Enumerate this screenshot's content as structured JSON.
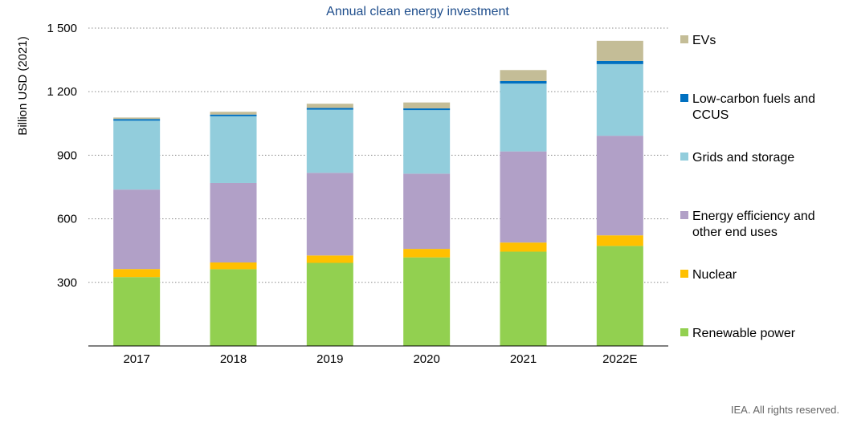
{
  "chart_data": {
    "type": "bar",
    "stacked": true,
    "title": "Annual clean energy investment",
    "ylabel": "Billion USD (2021)",
    "xlabel": "",
    "ylim": [
      0,
      1500
    ],
    "yticks": [
      300,
      600,
      900,
      1200,
      1500
    ],
    "ytick_labels": [
      "300",
      "600",
      "900",
      "1 200",
      "1 500"
    ],
    "grid": true,
    "legend_position": "right",
    "categories": [
      "2017",
      "2018",
      "2019",
      "2020",
      "2021",
      "2022E"
    ],
    "series": [
      {
        "name": "Renewable power",
        "color": "#92d050",
        "values": [
          325,
          362,
          392,
          418,
          445,
          472
        ]
      },
      {
        "name": "Nuclear",
        "color": "#ffc000",
        "values": [
          38,
          32,
          35,
          40,
          43,
          50
        ]
      },
      {
        "name": "Energy efficiency and other end uses",
        "color": "#b1a0c7",
        "values": [
          375,
          375,
          390,
          355,
          430,
          470
        ]
      },
      {
        "name": "Grids and storage",
        "color": "#92cddc",
        "values": [
          325,
          315,
          298,
          300,
          320,
          338
        ]
      },
      {
        "name": "Low-carbon fuels and CCUS",
        "color": "#0070c0",
        "values": [
          8,
          8,
          8,
          8,
          12,
          15
        ]
      },
      {
        "name": "EVs",
        "color": "#c4bd97",
        "values": [
          7,
          13,
          20,
          28,
          52,
          95
        ]
      }
    ],
    "credit": "IEA. All rights reserved."
  }
}
